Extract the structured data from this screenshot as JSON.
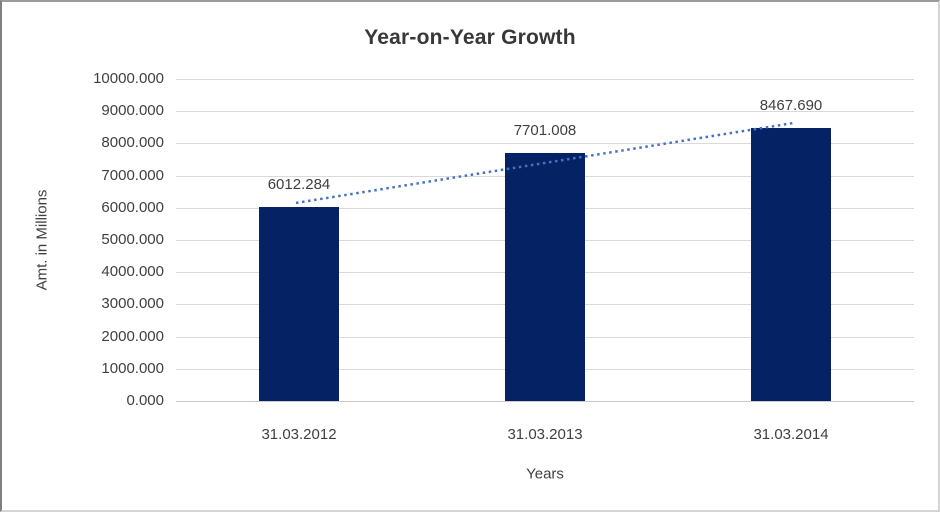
{
  "chart_data": {
    "type": "bar",
    "title": "Year-on-Year Growth",
    "xlabel": "Years",
    "ylabel": "Amt. in Millions",
    "categories": [
      "31.03.2012",
      "31.03.2013",
      "31.03.2014"
    ],
    "values": [
      6012.284,
      7701.008,
      8467.69
    ],
    "data_labels": [
      "6012.284",
      "7701.008",
      "8467.690"
    ],
    "ylim": [
      0,
      10000
    ],
    "ytick_step": 1000,
    "ytick_labels": [
      "0.000",
      "1000.000",
      "2000.000",
      "3000.000",
      "4000.000",
      "5000.000",
      "6000.000",
      "7000.000",
      "8000.000",
      "9000.000",
      "10000.000"
    ],
    "grid": true,
    "legend": "none",
    "trendline": {
      "type": "linear",
      "style": "dotted"
    }
  },
  "colors": {
    "bar": "#052265",
    "trendline": "#4573c4",
    "gridline": "#d9d9d9",
    "axis_line": "#c9c9c9",
    "text": "#404040",
    "title": "#383838",
    "background": "#ffffff"
  }
}
